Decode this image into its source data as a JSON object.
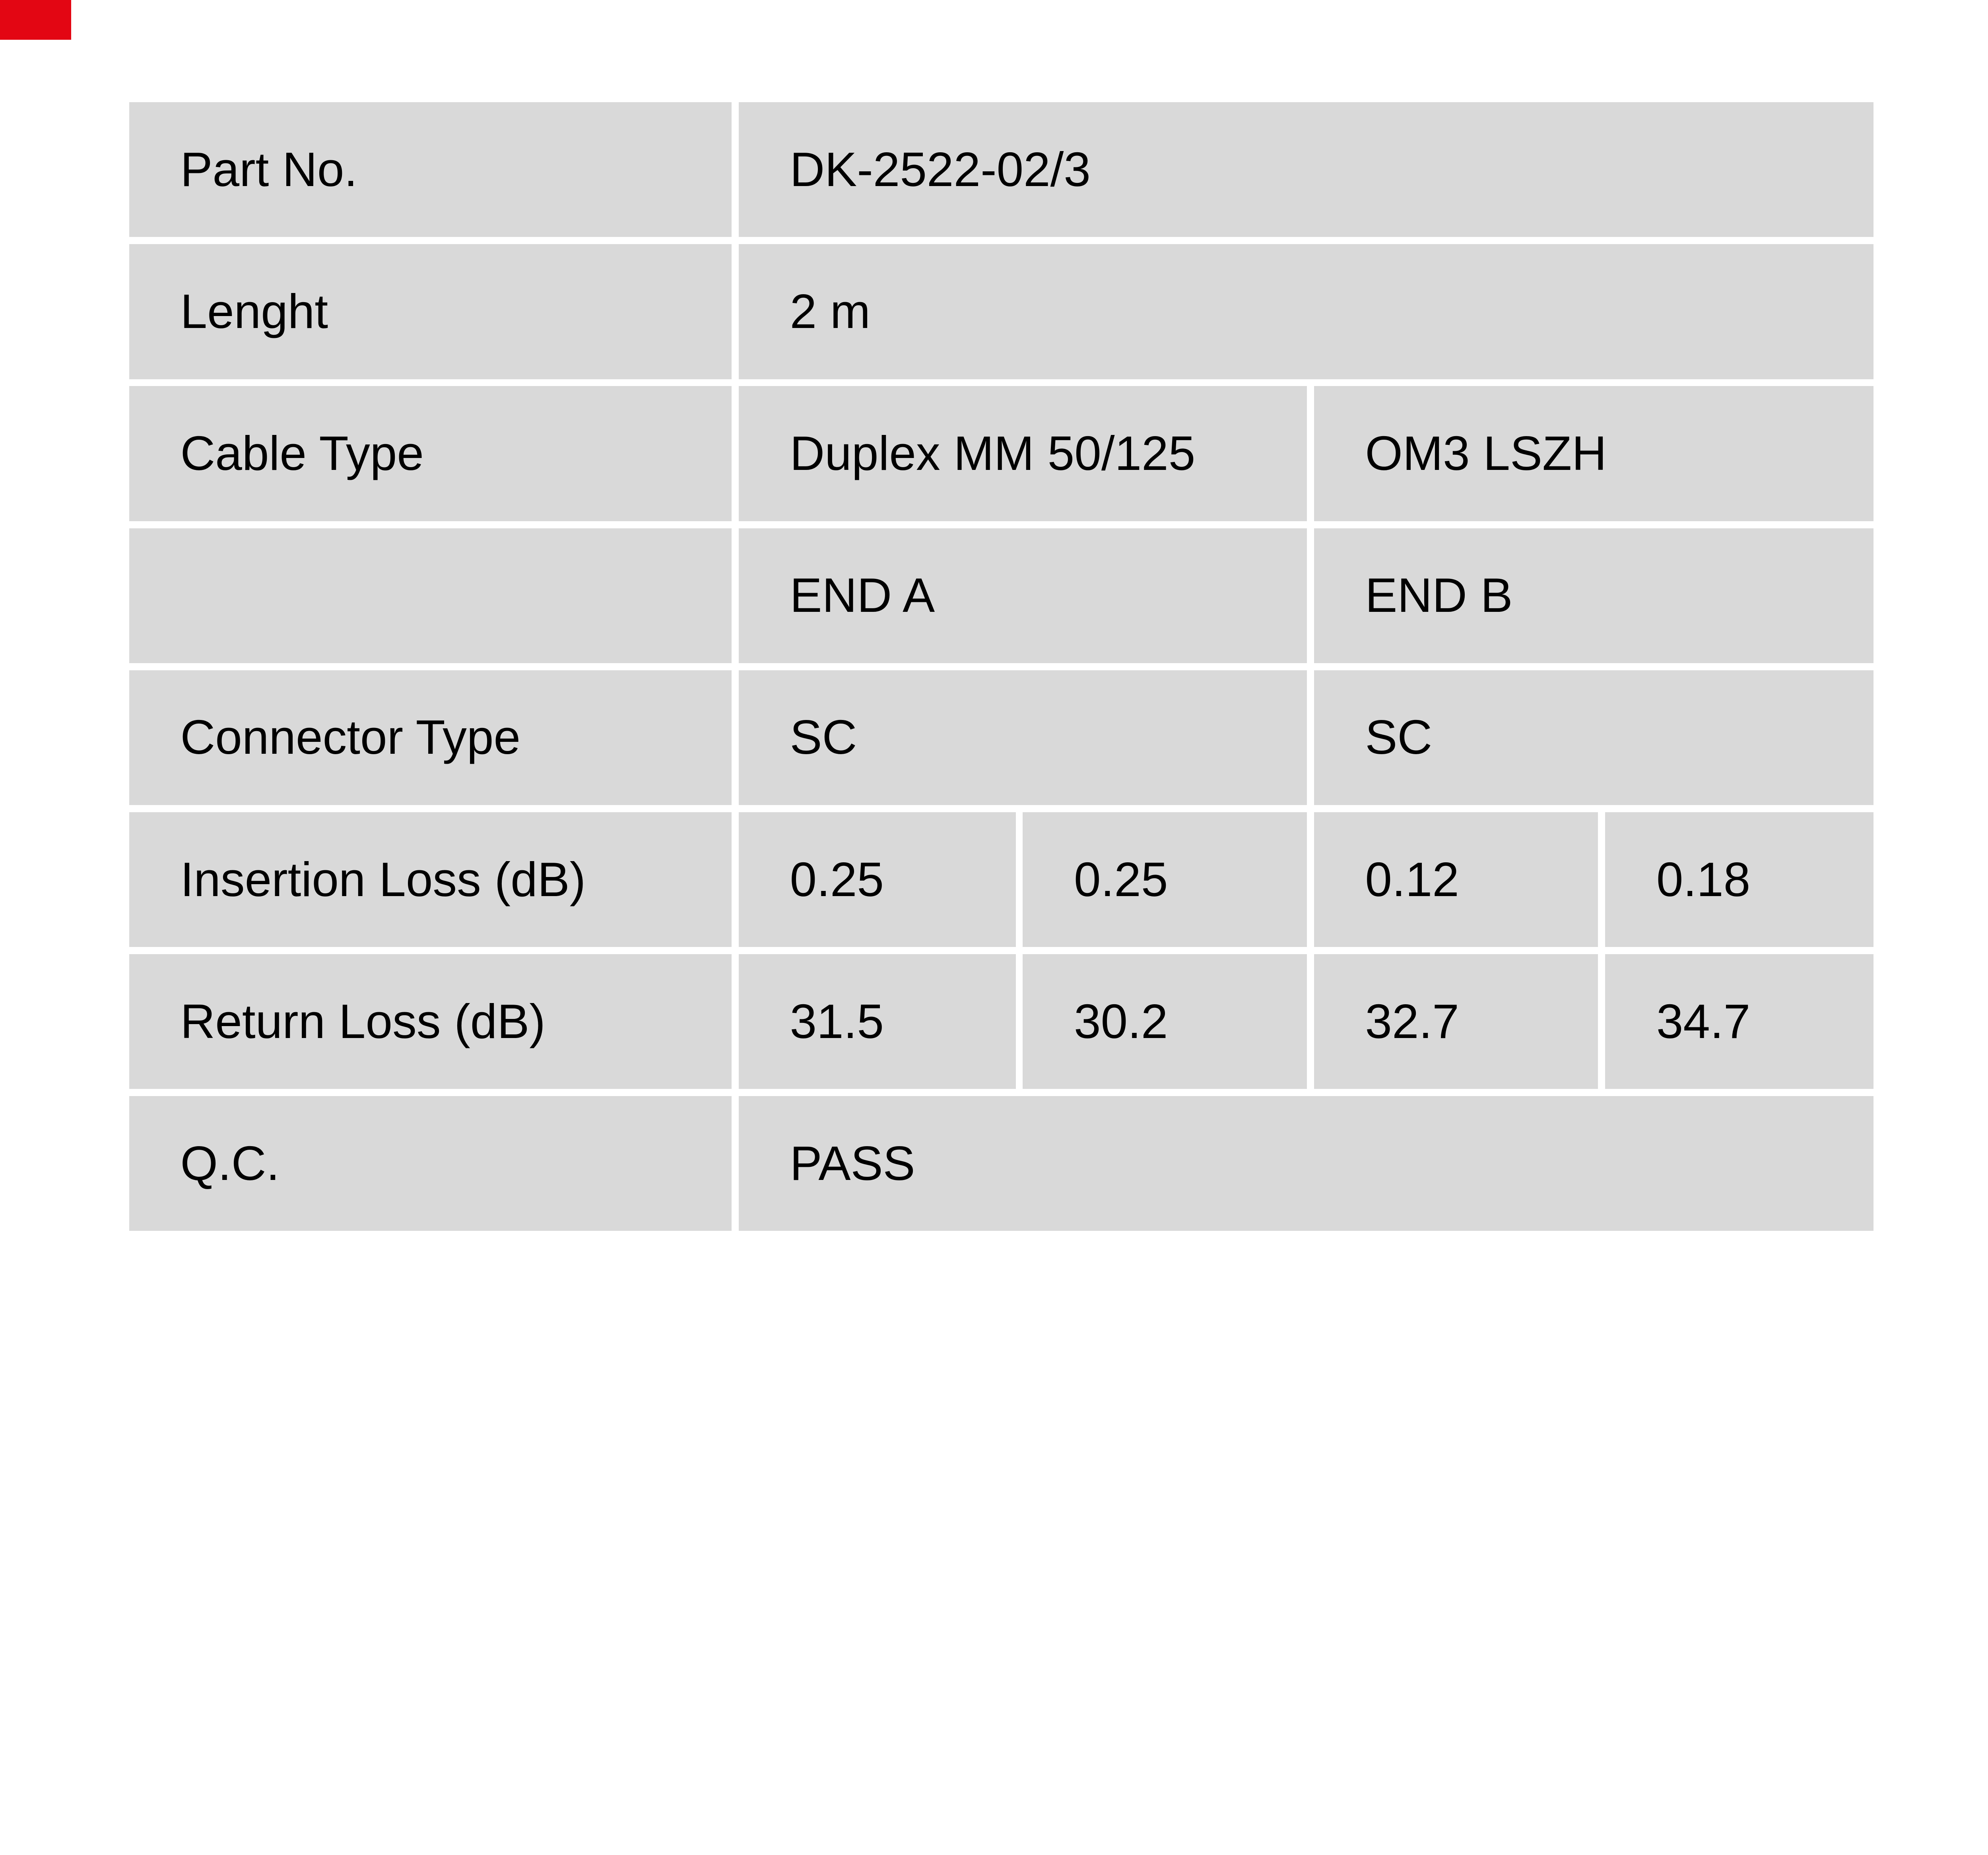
{
  "page": {
    "background": "#ffffff"
  },
  "corner_mark": {
    "color": "#e30613"
  },
  "table": {
    "cell_bg": "#d9d9d9",
    "text_color": "#000000",
    "rows": [
      {
        "label": "Part No.",
        "values": [
          "DK-2522-02/3"
        ]
      },
      {
        "label": "Lenght",
        "values": [
          "2 m"
        ]
      },
      {
        "label": "Cable Type",
        "values": [
          "Duplex MM 50/125",
          "OM3 LSZH"
        ]
      },
      {
        "label": "",
        "values": [
          "END A",
          "END B"
        ]
      },
      {
        "label": "Connector Type",
        "values": [
          "SC",
          "SC"
        ]
      },
      {
        "label": "Insertion Loss (dB)",
        "values": [
          "0.25",
          "0.25",
          "0.12",
          "0.18"
        ]
      },
      {
        "label": "Return Loss (dB)",
        "values": [
          "31.5",
          "30.2",
          "32.7",
          "34.7"
        ]
      },
      {
        "label": "Q.C.",
        "values": [
          "PASS"
        ]
      }
    ]
  }
}
